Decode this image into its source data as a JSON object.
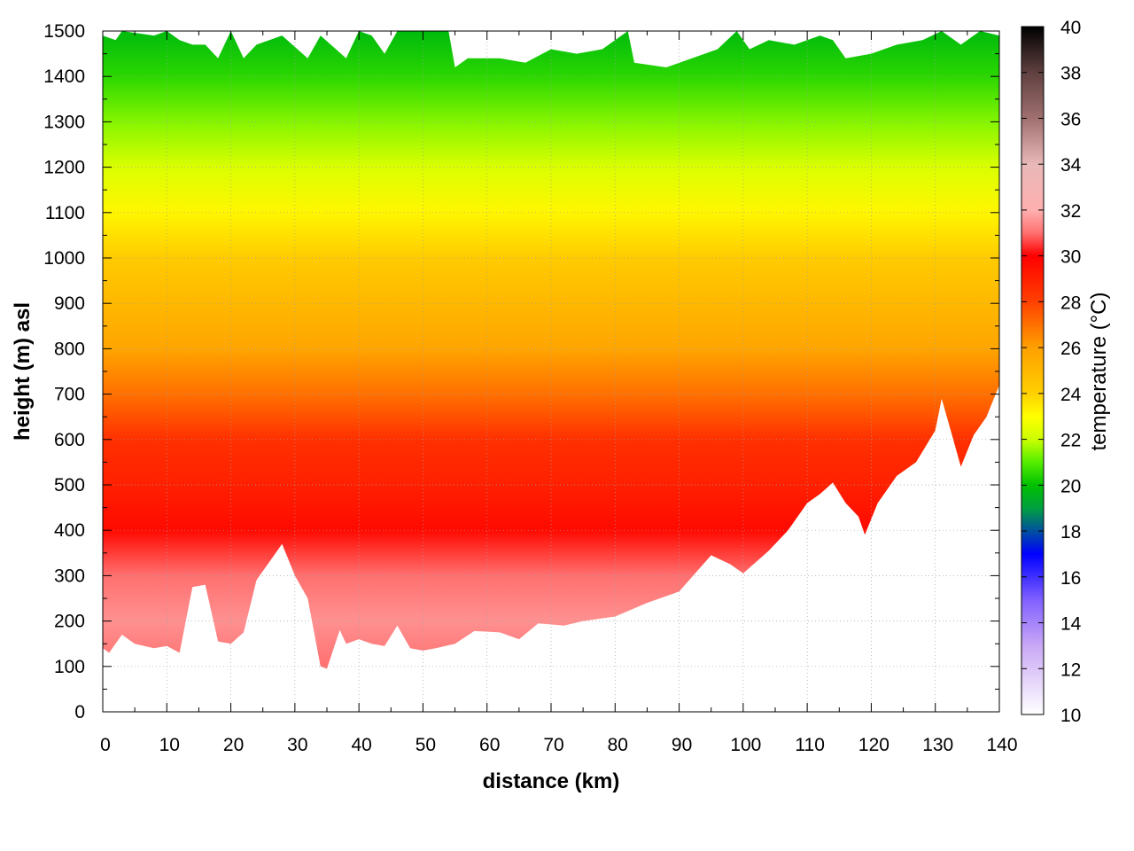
{
  "chart_data": {
    "type": "heatmap",
    "title": "",
    "xlabel": "distance (km)",
    "ylabel": "height (m) asl",
    "xlim": [
      0,
      140
    ],
    "ylim": [
      0,
      1500
    ],
    "x_ticks": [
      0,
      10,
      20,
      30,
      40,
      50,
      60,
      70,
      80,
      90,
      100,
      110,
      120,
      130,
      140
    ],
    "y_ticks": [
      0,
      100,
      200,
      300,
      400,
      500,
      600,
      700,
      800,
      900,
      1000,
      1100,
      1200,
      1300,
      1400,
      1500
    ],
    "x_tick_labels": [
      "0",
      "10",
      "20",
      "30",
      "40",
      "50",
      "60",
      "70",
      "80",
      "90",
      "100",
      "110",
      "120",
      "130",
      "140"
    ],
    "y_tick_labels": [
      "0",
      "100",
      "200",
      "300",
      "400",
      "500",
      "600",
      "700",
      "800",
      "900",
      "1000",
      "1100",
      "1200",
      "1300",
      "1400",
      "1500"
    ],
    "grid": true,
    "colorbar": {
      "label": "temperature (°C)",
      "range": [
        10,
        40
      ],
      "ticks": [
        10,
        12,
        14,
        16,
        18,
        20,
        22,
        24,
        26,
        28,
        30,
        32,
        34,
        36,
        38,
        40
      ],
      "tick_labels": [
        "10",
        "12",
        "14",
        "16",
        "18",
        "20",
        "22",
        "24",
        "26",
        "28",
        "30",
        "32",
        "34",
        "36",
        "38",
        "40"
      ],
      "stops": [
        {
          "value": 10,
          "color": "#ffffff"
        },
        {
          "value": 13,
          "color": "#c9a8f5"
        },
        {
          "value": 15,
          "color": "#8060ff"
        },
        {
          "value": 17,
          "color": "#0000ff"
        },
        {
          "value": 19,
          "color": "#00a040"
        },
        {
          "value": 20,
          "color": "#00c000"
        },
        {
          "value": 21,
          "color": "#55ee00"
        },
        {
          "value": 22,
          "color": "#ccff00"
        },
        {
          "value": 23,
          "color": "#ffff00"
        },
        {
          "value": 24,
          "color": "#ffd000"
        },
        {
          "value": 26,
          "color": "#ffa000"
        },
        {
          "value": 28,
          "color": "#ff4000"
        },
        {
          "value": 30,
          "color": "#ff0000"
        },
        {
          "value": 31,
          "color": "#ff7070"
        },
        {
          "value": 32,
          "color": "#ffb0b0"
        },
        {
          "value": 34,
          "color": "#e8b8b8"
        },
        {
          "value": 36,
          "color": "#a07070"
        },
        {
          "value": 38,
          "color": "#604040"
        },
        {
          "value": 40,
          "color": "#000000"
        }
      ]
    },
    "terrain_bottom_m": [
      [
        0,
        140
      ],
      [
        1,
        130
      ],
      [
        3,
        170
      ],
      [
        5,
        150
      ],
      [
        8,
        140
      ],
      [
        10,
        145
      ],
      [
        12,
        130
      ],
      [
        14,
        275
      ],
      [
        16,
        280
      ],
      [
        18,
        155
      ],
      [
        20,
        150
      ],
      [
        22,
        175
      ],
      [
        24,
        290
      ],
      [
        28,
        370
      ],
      [
        30,
        300
      ],
      [
        32,
        250
      ],
      [
        34,
        100
      ],
      [
        35,
        95
      ],
      [
        37,
        180
      ],
      [
        38,
        150
      ],
      [
        40,
        160
      ],
      [
        42,
        150
      ],
      [
        44,
        145
      ],
      [
        46,
        190
      ],
      [
        48,
        140
      ],
      [
        50,
        135
      ],
      [
        52,
        140
      ],
      [
        55,
        150
      ],
      [
        58,
        178
      ],
      [
        62,
        175
      ],
      [
        65,
        160
      ],
      [
        68,
        195
      ],
      [
        72,
        190
      ],
      [
        75,
        200
      ],
      [
        80,
        210
      ],
      [
        85,
        240
      ],
      [
        90,
        265
      ],
      [
        95,
        345
      ],
      [
        98,
        325
      ],
      [
        100,
        305
      ],
      [
        104,
        355
      ],
      [
        107,
        400
      ],
      [
        110,
        460
      ],
      [
        112,
        480
      ],
      [
        114,
        505
      ],
      [
        116,
        460
      ],
      [
        118,
        430
      ],
      [
        119,
        390
      ],
      [
        121,
        460
      ],
      [
        124,
        520
      ],
      [
        127,
        550
      ],
      [
        130,
        620
      ],
      [
        131,
        690
      ],
      [
        132,
        640
      ],
      [
        134,
        540
      ],
      [
        136,
        610
      ],
      [
        138,
        650
      ],
      [
        140,
        720
      ]
    ],
    "data_top_m": [
      [
        0,
        1490
      ],
      [
        2,
        1480
      ],
      [
        3,
        1500
      ],
      [
        8,
        1490
      ],
      [
        10,
        1500
      ],
      [
        12,
        1480
      ],
      [
        14,
        1470
      ],
      [
        16,
        1470
      ],
      [
        18,
        1440
      ],
      [
        20,
        1500
      ],
      [
        22,
        1440
      ],
      [
        24,
        1470
      ],
      [
        28,
        1490
      ],
      [
        32,
        1440
      ],
      [
        34,
        1490
      ],
      [
        38,
        1440
      ],
      [
        40,
        1500
      ],
      [
        42,
        1490
      ],
      [
        44,
        1450
      ],
      [
        46,
        1500
      ],
      [
        50,
        1500
      ],
      [
        54,
        1500
      ],
      [
        55,
        1420
      ],
      [
        57,
        1440
      ],
      [
        62,
        1440
      ],
      [
        66,
        1430
      ],
      [
        70,
        1460
      ],
      [
        74,
        1450
      ],
      [
        78,
        1460
      ],
      [
        82,
        1500
      ],
      [
        83,
        1430
      ],
      [
        88,
        1420
      ],
      [
        92,
        1440
      ],
      [
        96,
        1460
      ],
      [
        99,
        1500
      ],
      [
        101,
        1460
      ],
      [
        104,
        1480
      ],
      [
        108,
        1470
      ],
      [
        112,
        1490
      ],
      [
        114,
        1480
      ],
      [
        116,
        1440
      ],
      [
        120,
        1450
      ],
      [
        124,
        1470
      ],
      [
        128,
        1480
      ],
      [
        131,
        1500
      ],
      [
        134,
        1470
      ],
      [
        137,
        1500
      ],
      [
        140,
        1490
      ]
    ],
    "temperature_profile": [
      {
        "height_m": 100,
        "temp_c": 31.0
      },
      {
        "height_m": 200,
        "temp_c": 31.5
      },
      {
        "height_m": 300,
        "temp_c": 31.0
      },
      {
        "height_m": 400,
        "temp_c": 29.7
      },
      {
        "height_m": 500,
        "temp_c": 29.0
      },
      {
        "height_m": 600,
        "temp_c": 28.5
      },
      {
        "height_m": 700,
        "temp_c": 27.0
      },
      {
        "height_m": 800,
        "temp_c": 25.8
      },
      {
        "height_m": 900,
        "temp_c": 25.0
      },
      {
        "height_m": 1000,
        "temp_c": 24.2
      },
      {
        "height_m": 1100,
        "temp_c": 23.2
      },
      {
        "height_m": 1200,
        "temp_c": 22.3
      },
      {
        "height_m": 1300,
        "temp_c": 21.4
      },
      {
        "height_m": 1400,
        "temp_c": 20.5
      },
      {
        "height_m": 1500,
        "temp_c": 19.8
      }
    ]
  }
}
